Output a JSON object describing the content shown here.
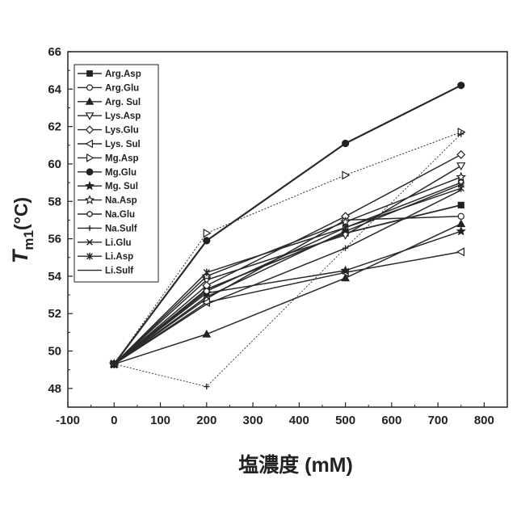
{
  "chart_data": {
    "type": "line",
    "xlabel": "塩濃度 (mM)",
    "ylabel": {
      "main": "T",
      "sub": "m1",
      "unit": "(°C)"
    },
    "xlim": [
      -100,
      850
    ],
    "ylim": [
      47,
      66
    ],
    "x_ticks": [
      "-100",
      "0",
      "100",
      "200",
      "300",
      "400",
      "500",
      "600",
      "700",
      "800"
    ],
    "y_ticks": [
      "48",
      "50",
      "52",
      "54",
      "56",
      "58",
      "60",
      "62",
      "64",
      "66"
    ],
    "x": [
      0,
      200,
      500,
      750
    ],
    "legend_position": "top-left",
    "grid": false,
    "series": [
      {
        "name": "Arg.Asp",
        "marker": "square",
        "values": [
          49.3,
          53.3,
          56.3,
          57.8
        ]
      },
      {
        "name": "Arg.Glu",
        "marker": "circle-open",
        "values": [
          49.3,
          52.8,
          57.0,
          57.2
        ]
      },
      {
        "name": "Arg. Sul",
        "marker": "triangle",
        "values": [
          49.3,
          50.9,
          53.9,
          56.8
        ]
      },
      {
        "name": "Lys.Asp",
        "marker": "triangle-down",
        "values": [
          49.3,
          53.8,
          56.2,
          59.9
        ]
      },
      {
        "name": "Lys.Glu",
        "marker": "diamond",
        "values": [
          49.3,
          53.5,
          57.2,
          60.5
        ]
      },
      {
        "name": "Lys. Sul",
        "marker": "triangle-left",
        "values": [
          49.3,
          52.6,
          54.2,
          55.3
        ]
      },
      {
        "name": "Mg.Asp",
        "marker": "triangle-right",
        "values": [
          49.3,
          56.3,
          59.4,
          61.7
        ]
      },
      {
        "name": "Mg.Glu",
        "marker": "circle",
        "values": [
          49.3,
          55.9,
          61.1,
          64.2
        ]
      },
      {
        "name": "Mg. Sul",
        "marker": "star",
        "values": [
          49.3,
          53.1,
          54.3,
          56.4
        ]
      },
      {
        "name": "Na.Asp",
        "marker": "star-open",
        "values": [
          49.3,
          54.0,
          56.9,
          59.3
        ]
      },
      {
        "name": "Na.Glu",
        "marker": "hexagon",
        "values": [
          49.3,
          53.2,
          56.6,
          59.0
        ]
      },
      {
        "name": "Na.Sulf",
        "marker": "plus",
        "values": [
          49.3,
          48.1,
          55.5,
          61.6
        ]
      },
      {
        "name": "Li.Glu",
        "marker": "x",
        "values": [
          49.3,
          52.9,
          56.4,
          58.9
        ]
      },
      {
        "name": "Li.Asp",
        "marker": "asterisk",
        "values": [
          49.3,
          54.2,
          56.6,
          58.7
        ]
      },
      {
        "name": "Li.Sulf",
        "marker": "none",
        "values": [
          49.3,
          52.5,
          55.5,
          58.6
        ]
      }
    ]
  }
}
